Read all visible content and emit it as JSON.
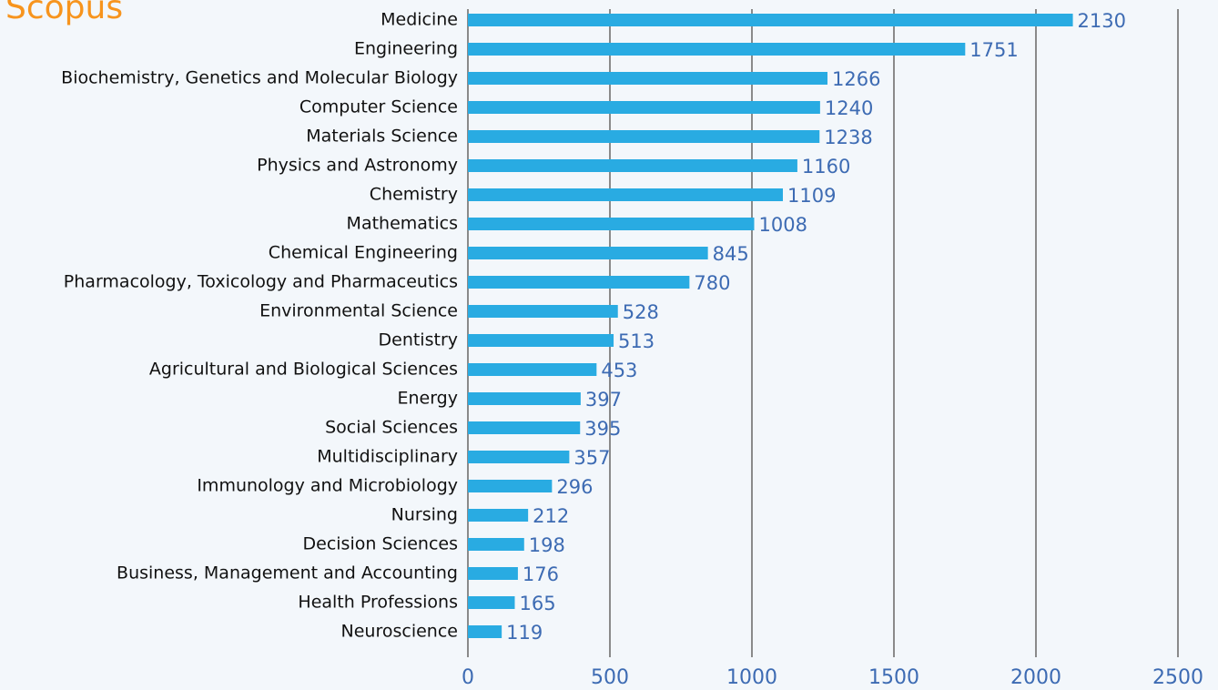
{
  "chart_data": {
    "type": "bar",
    "orientation": "horizontal",
    "title": "Scopus",
    "categories": [
      "Medicine",
      "Engineering",
      "Biochemistry, Genetics and Molecular Biology",
      "Computer Science",
      "Materials Science",
      "Physics and Astronomy",
      "Chemistry",
      "Mathematics",
      "Chemical Engineering",
      "Pharmacology, Toxicology and Pharmaceutics",
      "Environmental Science",
      "Dentistry",
      "Agricultural and Biological Sciences",
      "Energy",
      "Social Sciences",
      "Multidisciplinary",
      "Immunology and Microbiology",
      "Nursing",
      "Decision Sciences",
      "Business, Management and Accounting",
      "Health Professions",
      "Neuroscience"
    ],
    "values": [
      2130,
      1751,
      1266,
      1240,
      1238,
      1160,
      1109,
      1008,
      845,
      780,
      528,
      513,
      453,
      397,
      395,
      357,
      296,
      212,
      198,
      176,
      165,
      119
    ],
    "color": "#29abe2",
    "xlim": [
      0,
      2500
    ],
    "xticks": [
      0,
      500,
      1000,
      1500,
      2000,
      2500
    ],
    "grid": true
  }
}
